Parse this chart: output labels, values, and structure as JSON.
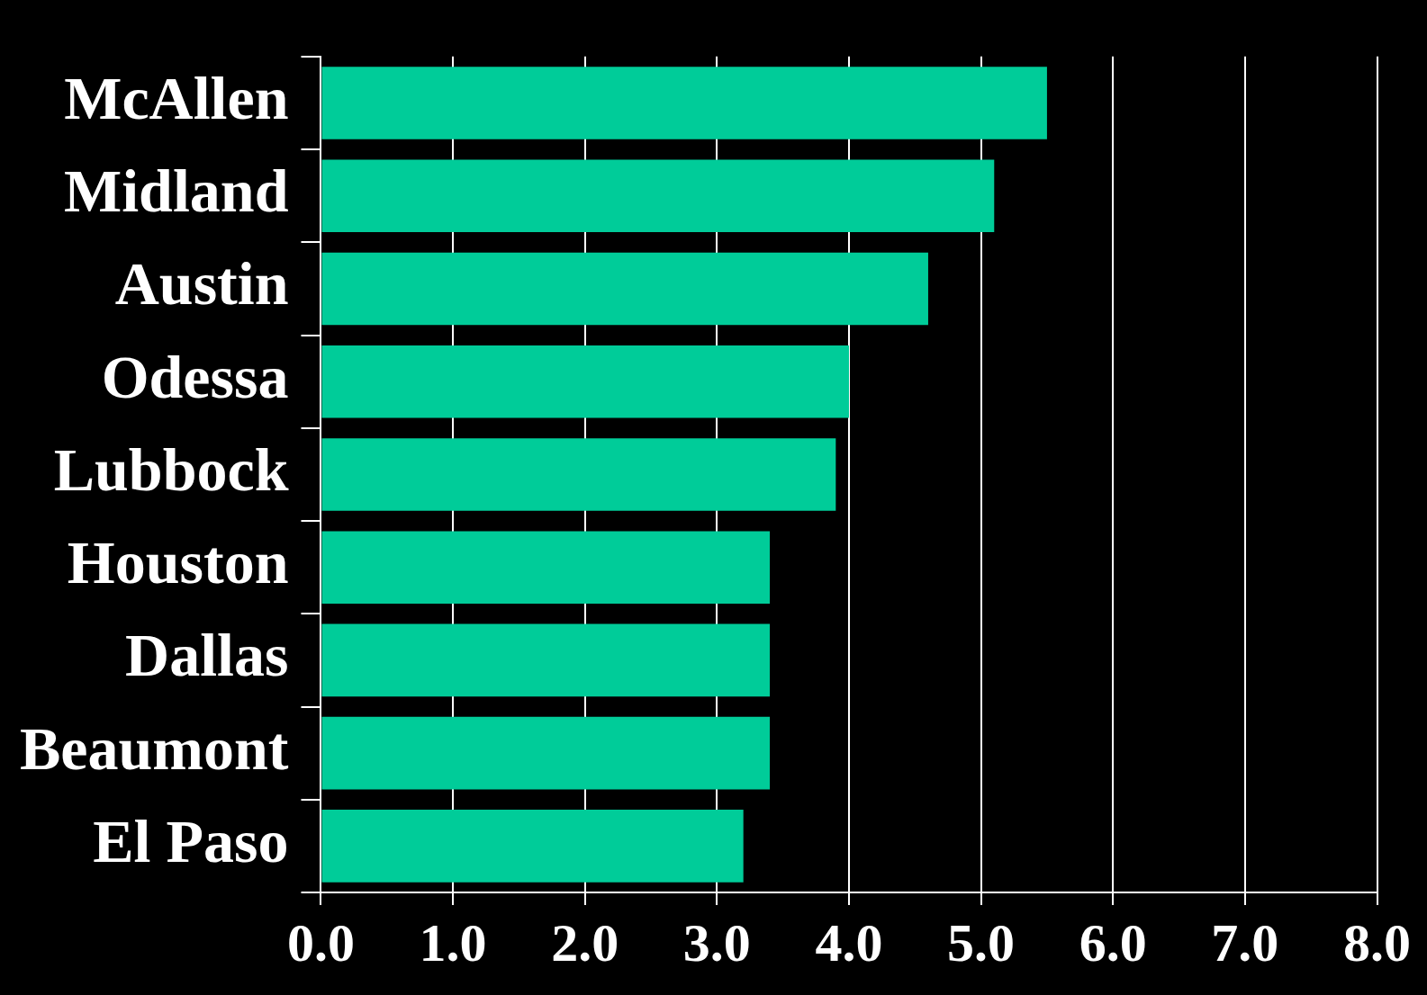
{
  "chart_data": {
    "type": "bar",
    "orientation": "horizontal",
    "categories": [
      "McAllen",
      "Midland",
      "Austin",
      "Odessa",
      "Lubbock",
      "Houston",
      "Dallas",
      "Beaumont",
      "El Paso"
    ],
    "values": [
      5.5,
      5.1,
      4.6,
      4.0,
      3.9,
      3.4,
      3.4,
      3.4,
      3.2
    ],
    "color": "#00cc99",
    "xlim": [
      0,
      8
    ],
    "xticks": [
      {
        "value": 0,
        "label": "0.0"
      },
      {
        "value": 1,
        "label": "1.0"
      },
      {
        "value": 2,
        "label": "2.0"
      },
      {
        "value": 3,
        "label": "3.0"
      },
      {
        "value": 4,
        "label": "4.0"
      },
      {
        "value": 5,
        "label": "5.0"
      },
      {
        "value": 6,
        "label": "6.0"
      },
      {
        "value": 7,
        "label": "7.0"
      },
      {
        "value": 8,
        "label": "8.0"
      }
    ],
    "grid": "x",
    "legend": false
  }
}
